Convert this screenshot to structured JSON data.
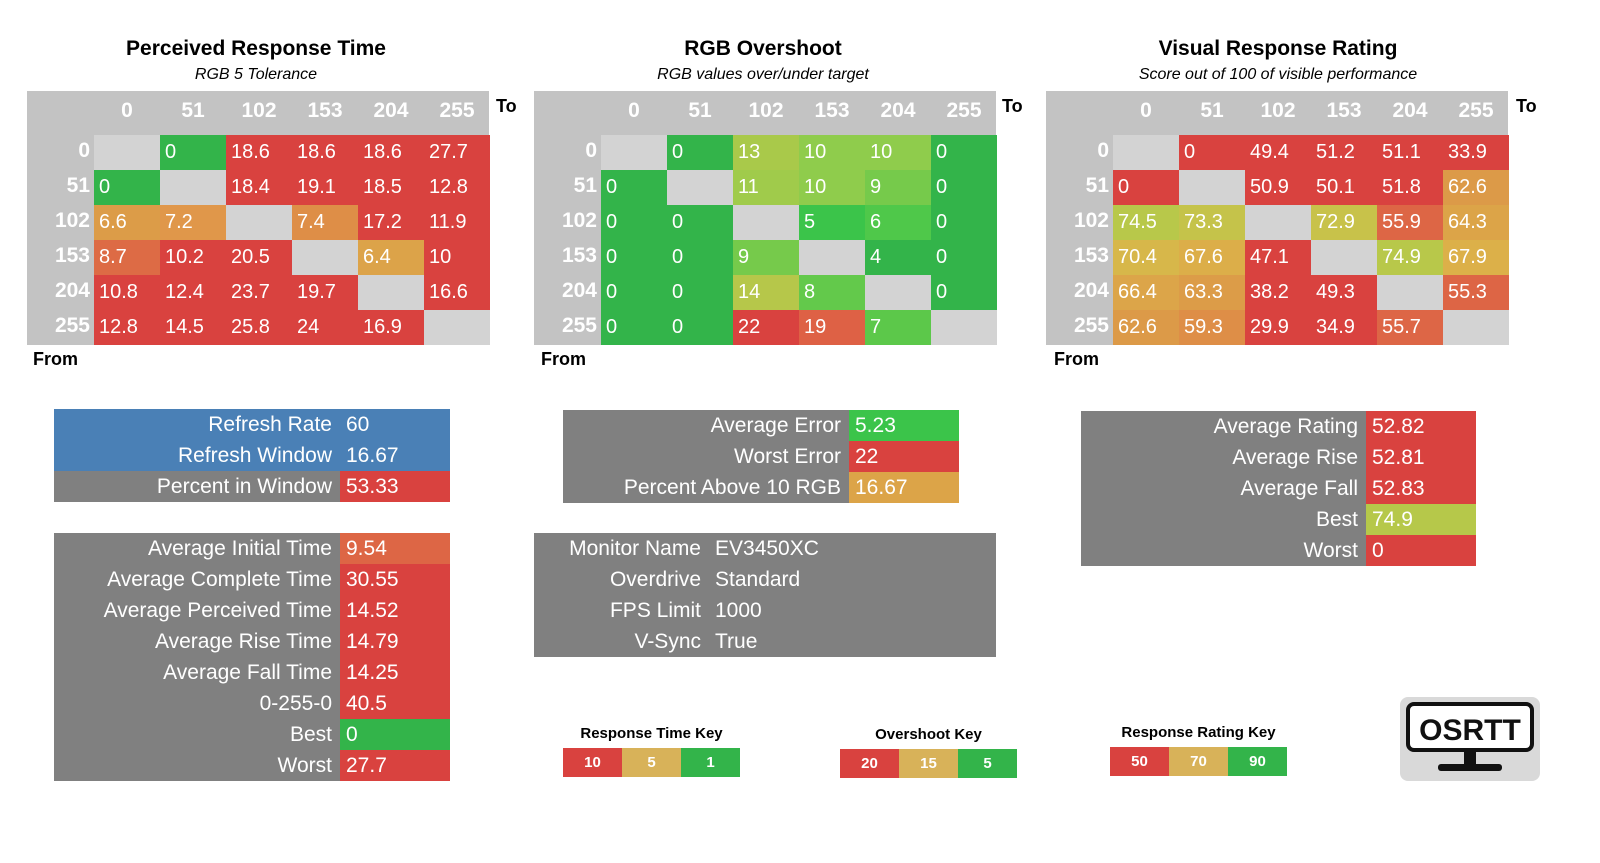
{
  "matrices": [
    {
      "id": "perceived",
      "title": "Perceived Response Time",
      "subtitle": "RGB 5 Tolerance",
      "to_label": "To",
      "from_label": "From",
      "columns": [
        "0",
        "51",
        "102",
        "153",
        "204",
        "255"
      ],
      "rows": [
        "0",
        "51",
        "102",
        "153",
        "204",
        "255"
      ],
      "values": [
        [
          "",
          "0",
          "18.6",
          "18.6",
          "18.6",
          "27.7"
        ],
        [
          "0",
          "",
          "18.4",
          "19.1",
          "18.5",
          "12.8"
        ],
        [
          "6.6",
          "7.2",
          "",
          "7.4",
          "17.2",
          "11.9"
        ],
        [
          "8.7",
          "10.2",
          "20.5",
          "",
          "6.4",
          "10"
        ],
        [
          "10.8",
          "12.4",
          "23.7",
          "19.7",
          "",
          "16.6"
        ],
        [
          "12.8",
          "14.5",
          "25.8",
          "24",
          "16.9",
          ""
        ]
      ],
      "colors": [
        [
          "#d3d3d3",
          "#33b44a",
          "#d9423f",
          "#d9423f",
          "#d9423f",
          "#d9423f"
        ],
        [
          "#33b44a",
          "#d3d3d3",
          "#d9423f",
          "#d9423f",
          "#d9423f",
          "#d9423f"
        ],
        [
          "#dc9c48",
          "#e0974a",
          "#d3d3d3",
          "#de8e47",
          "#d9423f",
          "#d9423f"
        ],
        [
          "#dd6b45",
          "#d9423f",
          "#d9423f",
          "#d3d3d3",
          "#dca349",
          "#d9423f"
        ],
        [
          "#d9423f",
          "#d9423f",
          "#d9423f",
          "#d9423f",
          "#d3d3d3",
          "#d9423f"
        ],
        [
          "#d9423f",
          "#d9423f",
          "#d9423f",
          "#d9423f",
          "#d9423f",
          "#d3d3d3"
        ]
      ]
    },
    {
      "id": "overshoot",
      "title": "RGB Overshoot",
      "subtitle": "RGB values over/under target",
      "to_label": "To",
      "from_label": "From",
      "columns": [
        "0",
        "51",
        "102",
        "153",
        "204",
        "255"
      ],
      "rows": [
        "0",
        "51",
        "102",
        "153",
        "204",
        "255"
      ],
      "values": [
        [
          "",
          "0",
          "13",
          "10",
          "10",
          "0"
        ],
        [
          "0",
          "",
          "11",
          "10",
          "9",
          "0"
        ],
        [
          "0",
          "0",
          "",
          "5",
          "6",
          "0"
        ],
        [
          "0",
          "0",
          "9",
          "",
          "4",
          "0"
        ],
        [
          "0",
          "0",
          "14",
          "8",
          "",
          "0"
        ],
        [
          "0",
          "0",
          "22",
          "19",
          "7",
          ""
        ]
      ],
      "colors": [
        [
          "#d3d3d3",
          "#33b44a",
          "#a9c94a",
          "#8fcc4c",
          "#8fcc4c",
          "#33b44a"
        ],
        [
          "#33b44a",
          "#d3d3d3",
          "#a0cb4b",
          "#8fcc4c",
          "#76ca4b",
          "#33b44a"
        ],
        [
          "#33b44a",
          "#33b44a",
          "#d3d3d3",
          "#3bc44a",
          "#4fc84a",
          "#33b44a"
        ],
        [
          "#33b44a",
          "#33b44a",
          "#76ca4b",
          "#d3d3d3",
          "#33b44a",
          "#33b44a"
        ],
        [
          "#33b44a",
          "#33b44a",
          "#b6c74a",
          "#63c94b",
          "#d3d3d3",
          "#33b44a"
        ],
        [
          "#33b44a",
          "#33b44a",
          "#d9423f",
          "#de6145",
          "#5cc84a",
          "#d3d3d3"
        ]
      ]
    },
    {
      "id": "rating",
      "title": "Visual Response Rating",
      "subtitle": "Score out of 100 of visible performance",
      "to_label": "To",
      "from_label": "From",
      "columns": [
        "0",
        "51",
        "102",
        "153",
        "204",
        "255"
      ],
      "rows": [
        "0",
        "51",
        "102",
        "153",
        "204",
        "255"
      ],
      "values": [
        [
          "",
          "0",
          "49.4",
          "51.2",
          "51.1",
          "33.9"
        ],
        [
          "0",
          "",
          "50.9",
          "50.1",
          "51.8",
          "62.6"
        ],
        [
          "74.5",
          "73.3",
          "",
          "72.9",
          "55.9",
          "64.3"
        ],
        [
          "70.4",
          "67.6",
          "47.1",
          "",
          "74.9",
          "67.9"
        ],
        [
          "66.4",
          "63.3",
          "38.2",
          "49.3",
          "",
          "55.3"
        ],
        [
          "62.6",
          "59.3",
          "29.9",
          "34.9",
          "55.7",
          ""
        ]
      ],
      "colors": [
        [
          "#d3d3d3",
          "#d9423f",
          "#d9423f",
          "#d9423f",
          "#d9423f",
          "#d9423f"
        ],
        [
          "#d9423f",
          "#d3d3d3",
          "#d9423f",
          "#d9423f",
          "#d9423f",
          "#dc9a48"
        ],
        [
          "#b8c84a",
          "#c5c34a",
          "#d3d3d3",
          "#c8c24a",
          "#dd6645",
          "#dca448"
        ],
        [
          "#d7b74a",
          "#dcae49",
          "#d9423f",
          "#d3d3d3",
          "#b8c84a",
          "#dcb049"
        ],
        [
          "#dca549",
          "#dc9c48",
          "#d9423f",
          "#d9423f",
          "#d3d3d3",
          "#dd6545"
        ],
        [
          "#dc9a48",
          "#de8e47",
          "#d9423f",
          "#d9423f",
          "#dd6646",
          "#d3d3d3"
        ]
      ]
    }
  ],
  "refresh_panel": [
    {
      "label": "Refresh Rate",
      "value": "60",
      "label_color": "#4a80b6",
      "value_color": "#4a80b6"
    },
    {
      "label": "Refresh Window",
      "value": "16.67",
      "label_color": "#4a80b6",
      "value_color": "#4a80b6"
    },
    {
      "label": "Percent in Window",
      "value": "53.33",
      "label_color": "#808080",
      "value_color": "#d9423f"
    }
  ],
  "time_panel": [
    {
      "label": "Average Initial Time",
      "value": "9.54",
      "value_color": "#dd6645"
    },
    {
      "label": "Average Complete Time",
      "value": "30.55",
      "value_color": "#d9423f"
    },
    {
      "label": "Average Perceived Time",
      "value": "14.52",
      "value_color": "#d9423f"
    },
    {
      "label": "Average Rise Time",
      "value": "14.79",
      "value_color": "#d9423f"
    },
    {
      "label": "Average Fall Time",
      "value": "14.25",
      "value_color": "#d9423f"
    },
    {
      "label": "0-255-0",
      "value": "40.5",
      "value_color": "#d9423f"
    },
    {
      "label": "Best",
      "value": "0",
      "value_color": "#33b44a"
    },
    {
      "label": "Worst",
      "value": "27.7",
      "value_color": "#d9423f"
    }
  ],
  "error_panel": [
    {
      "label": "Average Error",
      "value": "5.23",
      "value_color": "#3bc44a"
    },
    {
      "label": "Worst Error",
      "value": "22",
      "value_color": "#d9423f"
    },
    {
      "label": "Percent Above 10 RGB",
      "value": "16.67",
      "value_color": "#dca448"
    }
  ],
  "monitor_panel": [
    {
      "label": "Monitor Name",
      "value": "EV3450XC"
    },
    {
      "label": "Overdrive",
      "value": "Standard"
    },
    {
      "label": "FPS Limit",
      "value": "1000"
    },
    {
      "label": "V-Sync",
      "value": "True"
    }
  ],
  "rating_panel": [
    {
      "label": "Average Rating",
      "value": "52.82",
      "value_color": "#d9423f"
    },
    {
      "label": "Average Rise",
      "value": "52.81",
      "value_color": "#d9423f"
    },
    {
      "label": "Average Fall",
      "value": "52.83",
      "value_color": "#d9423f"
    },
    {
      "label": "Best",
      "value": "74.9",
      "value_color": "#b6c84a"
    },
    {
      "label": "Worst",
      "value": "0",
      "value_color": "#d9423f"
    }
  ],
  "keys": [
    {
      "title": "Response Time Key",
      "items": [
        {
          "label": "10",
          "color": "#d9423f"
        },
        {
          "label": "5",
          "color": "#d8b259"
        },
        {
          "label": "1",
          "color": "#33b44a"
        }
      ]
    },
    {
      "title": "Overshoot Key",
      "items": [
        {
          "label": "20",
          "color": "#d9423f"
        },
        {
          "label": "15",
          "color": "#d8b259"
        },
        {
          "label": "5",
          "color": "#33b44a"
        }
      ]
    },
    {
      "title": "Response Rating Key",
      "items": [
        {
          "label": "50",
          "color": "#d9423f"
        },
        {
          "label": "70",
          "color": "#d8b259"
        },
        {
          "label": "90",
          "color": "#33b44a"
        }
      ]
    }
  ],
  "logo": {
    "text": "OSRTT"
  },
  "chart_data": [
    {
      "type": "heatmap",
      "title": "Perceived Response Time",
      "subtitle": "RGB 5 Tolerance",
      "xlabel": "To",
      "ylabel": "From",
      "x": [
        0,
        51,
        102,
        153,
        204,
        255
      ],
      "y": [
        0,
        51,
        102,
        153,
        204,
        255
      ],
      "values": [
        [
          null,
          0,
          18.6,
          18.6,
          18.6,
          27.7
        ],
        [
          0,
          null,
          18.4,
          19.1,
          18.5,
          12.8
        ],
        [
          6.6,
          7.2,
          null,
          7.4,
          17.2,
          11.9
        ],
        [
          8.7,
          10.2,
          20.5,
          null,
          6.4,
          10
        ],
        [
          10.8,
          12.4,
          23.7,
          19.7,
          null,
          16.6
        ],
        [
          12.8,
          14.5,
          25.8,
          24,
          16.9,
          null
        ]
      ]
    },
    {
      "type": "heatmap",
      "title": "RGB Overshoot",
      "subtitle": "RGB values over/under target",
      "xlabel": "To",
      "ylabel": "From",
      "x": [
        0,
        51,
        102,
        153,
        204,
        255
      ],
      "y": [
        0,
        51,
        102,
        153,
        204,
        255
      ],
      "values": [
        [
          null,
          0,
          13,
          10,
          10,
          0
        ],
        [
          0,
          null,
          11,
          10,
          9,
          0
        ],
        [
          0,
          0,
          null,
          5,
          6,
          0
        ],
        [
          0,
          0,
          9,
          null,
          4,
          0
        ],
        [
          0,
          0,
          14,
          8,
          null,
          0
        ],
        [
          0,
          0,
          22,
          19,
          7,
          null
        ]
      ]
    },
    {
      "type": "heatmap",
      "title": "Visual Response Rating",
      "subtitle": "Score out of 100 of visible performance",
      "xlabel": "To",
      "ylabel": "From",
      "x": [
        0,
        51,
        102,
        153,
        204,
        255
      ],
      "y": [
        0,
        51,
        102,
        153,
        204,
        255
      ],
      "values": [
        [
          null,
          0,
          49.4,
          51.2,
          51.1,
          33.9
        ],
        [
          0,
          null,
          50.9,
          50.1,
          51.8,
          62.6
        ],
        [
          74.5,
          73.3,
          null,
          72.9,
          55.9,
          64.3
        ],
        [
          70.4,
          67.6,
          47.1,
          null,
          74.9,
          67.9
        ],
        [
          66.4,
          63.3,
          38.2,
          49.3,
          null,
          55.3
        ],
        [
          62.6,
          59.3,
          29.9,
          34.9,
          55.7,
          null
        ]
      ]
    }
  ]
}
